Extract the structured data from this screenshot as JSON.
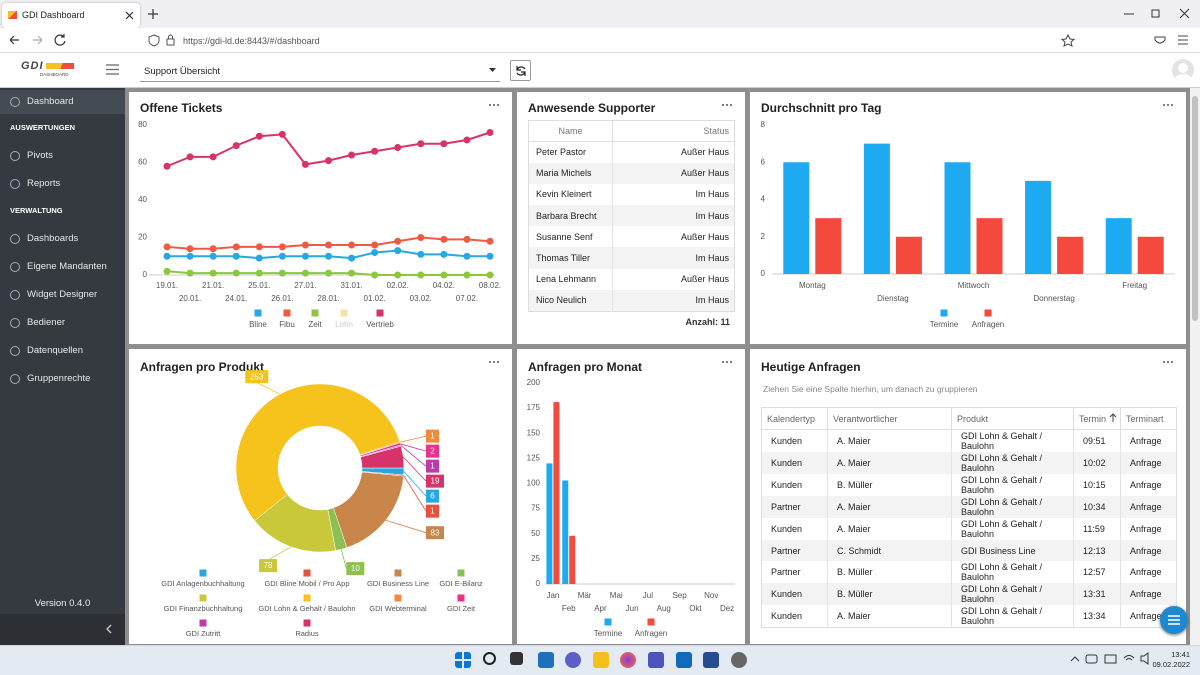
{
  "browser": {
    "tab_title": "GDI Dashboard",
    "url": "https://gdi-ld.de:8443/#/dashboard"
  },
  "app": {
    "logo": "GDI",
    "logo_subtitle": "DASHBOARD",
    "view_select": "Support Übersicht"
  },
  "sidebar": {
    "home": "Dashboard",
    "sections": [
      {
        "title": "AUSWERTUNGEN",
        "items": [
          "Pivots",
          "Reports"
        ]
      },
      {
        "title": "VERWALTUNG",
        "items": [
          "Dashboards",
          "Eigene Mandanten",
          "Widget Designer",
          "Bediener",
          "Datenquellen",
          "Gruppenrechte"
        ]
      }
    ],
    "version": "Version 0.4.0"
  },
  "chart_data": [
    {
      "type": "line",
      "title": "Offene Tickets",
      "categories": [
        "19.01.",
        "20.01.",
        "21.01.",
        "24.01.",
        "25.01.",
        "26.01.",
        "27.01.",
        "28.01.",
        "31.01.",
        "01.02.",
        "02.02.",
        "03.02.",
        "04.02.",
        "07.02.",
        "08.02."
      ],
      "series": [
        {
          "name": "Bline",
          "color": "#27a7e3",
          "values": [
            10,
            10,
            10,
            10,
            9,
            10,
            10,
            10,
            9,
            12,
            13,
            11,
            11,
            10,
            10
          ]
        },
        {
          "name": "Fibu",
          "color": "#ef5a42",
          "values": [
            15,
            14,
            14,
            15,
            15,
            15,
            16,
            16,
            16,
            16,
            18,
            20,
            19,
            19,
            18
          ]
        },
        {
          "name": "Zeit",
          "color": "#8dc63f",
          "values": [
            2,
            1,
            1,
            1,
            1,
            1,
            1,
            1,
            1,
            0,
            0,
            0,
            0,
            0,
            0
          ]
        },
        {
          "name": "Lohn",
          "color": "#f6e2a6",
          "hidden": true,
          "values": [
            null,
            null,
            null,
            null,
            null,
            null,
            null,
            null,
            null,
            null,
            null,
            null,
            null,
            null,
            null
          ]
        },
        {
          "name": "Vertrieb",
          "color": "#d7336b",
          "values": [
            58,
            63,
            63,
            69,
            74,
            75,
            59,
            61,
            64,
            66,
            68,
            70,
            70,
            72,
            76
          ]
        }
      ],
      "ylim": [
        0,
        80
      ],
      "yticks": [
        0,
        20,
        40,
        60,
        80
      ]
    },
    {
      "type": "bar",
      "title": "Durchschnitt pro Tag",
      "categories": [
        "Montag",
        "Dienstag",
        "Mittwoch",
        "Donnerstag",
        "Freitag"
      ],
      "series": [
        {
          "name": "Termine",
          "color": "#1eaaf1",
          "values": [
            6,
            7,
            6,
            5,
            3
          ]
        },
        {
          "name": "Anfragen",
          "color": "#f44a3e",
          "values": [
            3,
            2,
            3,
            2,
            2
          ]
        }
      ],
      "ylim": [
        0,
        8
      ],
      "yticks": [
        0,
        2,
        4,
        6,
        8
      ]
    },
    {
      "type": "pie",
      "title": "Anfragen pro Produkt",
      "donut": true,
      "categories": [
        "GDI Anlagenbuchhaltung",
        "GDI Bline Mobil / Pro App",
        "GDI Business Line",
        "GDI E-Bilanz",
        "GDI Finanzbuchhaltung",
        "GDI Lohn & Gehalt / Baulohn",
        "GDI Webterminal",
        "GDI Zeit",
        "GDI Zutritt",
        "Radius"
      ],
      "values": [
        6,
        1,
        83,
        10,
        78,
        253,
        1,
        2,
        1,
        19
      ],
      "colors": [
        "#29a8df",
        "#e8513a",
        "#c8864b",
        "#8cc152",
        "#c9c83b",
        "#f6c21c",
        "#f08a3c",
        "#e8338a",
        "#b93ca8",
        "#d6336c"
      ]
    },
    {
      "type": "bar",
      "title": "Anfragen pro Monat",
      "categories": [
        "Jan",
        "Feb",
        "Mär",
        "Apr",
        "Mai",
        "Jun",
        "Jul",
        "Aug",
        "Sep",
        "Okt",
        "Nov",
        "Dez"
      ],
      "series": [
        {
          "name": "Termine",
          "color": "#1eaaf1",
          "values": [
            120,
            103,
            0,
            0,
            0,
            0,
            0,
            0,
            0,
            0,
            0,
            0
          ]
        },
        {
          "name": "Anfragen",
          "color": "#f44a3e",
          "values": [
            181,
            48,
            0,
            0,
            0,
            0,
            0,
            0,
            0,
            0,
            0,
            0
          ]
        }
      ],
      "ylim": [
        0,
        200
      ],
      "yticks": [
        0,
        25,
        50,
        75,
        100,
        125,
        150,
        175,
        200
      ]
    }
  ],
  "supporters": {
    "title": "Anwesende Supporter",
    "columns": [
      "Name",
      "Status"
    ],
    "rows": [
      [
        "Peter Pastor",
        "Außer Haus"
      ],
      [
        "Maria Michels",
        "Außer Haus"
      ],
      [
        "Kevin Kleinert",
        "Im Haus"
      ],
      [
        "Barbara Brecht",
        "Im Haus"
      ],
      [
        "Susanne Senf",
        "Außer Haus"
      ],
      [
        "Thomas Tiller",
        "Im Haus"
      ],
      [
        "Lena Lehmann",
        "Außer Haus"
      ],
      [
        "Nico Neulich",
        "Im Haus"
      ]
    ],
    "footer": "Anzahl: 11"
  },
  "requests": {
    "title": "Heutige Anfragen",
    "group_hint": "Ziehen Sie eine Spalte hierhin, um danach zu gruppieren",
    "columns": [
      "Kalendertyp",
      "Verantwortlicher",
      "Produkt",
      "Termin",
      "Terminart"
    ],
    "rows": [
      [
        "Kunden",
        "A. Maier",
        "GDI Lohn & Gehalt / Baulohn",
        "09:51",
        "Anfrage"
      ],
      [
        "Kunden",
        "A. Maier",
        "GDI Lohn & Gehalt / Baulohn",
        "10:02",
        "Anfrage"
      ],
      [
        "Kunden",
        "B. Müller",
        "GDI Lohn & Gehalt / Baulohn",
        "10:15",
        "Anfrage"
      ],
      [
        "Partner",
        "A. Maier",
        "GDI Lohn & Gehalt / Baulohn",
        "10:34",
        "Anfrage"
      ],
      [
        "Kunden",
        "A. Maier",
        "GDI Lohn & Gehalt / Baulohn",
        "11:59",
        "Anfrage"
      ],
      [
        "Partner",
        "C. Schmidt",
        "GDI Business Line",
        "12:13",
        "Anfrage"
      ],
      [
        "Partner",
        "B. Müller",
        "GDI Lohn & Gehalt / Baulohn",
        "12:57",
        "Anfrage"
      ],
      [
        "Kunden",
        "B. Müller",
        "GDI Lohn & Gehalt / Baulohn",
        "13:31",
        "Anfrage"
      ],
      [
        "Kunden",
        "A. Maier",
        "GDI Lohn & Gehalt / Baulohn",
        "13:34",
        "Anfrage"
      ]
    ]
  },
  "taskbar": {
    "time": "13:41",
    "date": "09.02.2022"
  }
}
